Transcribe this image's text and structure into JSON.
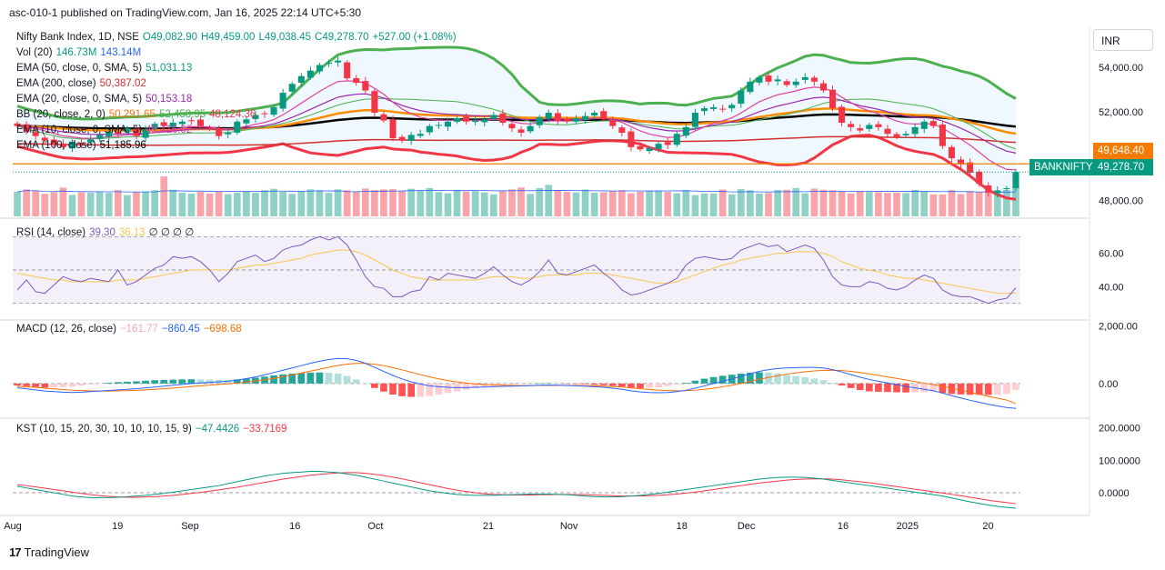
{
  "header": {
    "text": "asc-010-1 published on TradingView.com, Jan 16, 2025 22:14 UTC+5:30"
  },
  "currency": "INR",
  "legend": {
    "title": "Nifty Bank Index, 1D, NSE",
    "open": "O49,082.90",
    "high": "H49,459.00",
    "low": "L49,038.45",
    "close": "C49,278.70",
    "change": "+527.00 (+1.08%)",
    "vol": {
      "label": "Vol (20)",
      "v1": "146.73M",
      "v2": "143.14M"
    },
    "ema50": {
      "label": "EMA (50, close, 0, SMA, 5)",
      "value": "51,031.13"
    },
    "ema200": {
      "label": "EMA (200, close)",
      "value": "50,387.02"
    },
    "ema20": {
      "label": "EMA (20, close, 0, SMA, 5)",
      "value": "50,153.18"
    },
    "bb": {
      "label": "BB (20, close, 2, 0)",
      "basis": "50,291.65",
      "upper": "52,458.95",
      "lower": "48,124.36"
    },
    "ema10": {
      "label": "EMA (10, close, 0, SMA, 5)",
      "value": "49,416.92"
    },
    "ema100": {
      "label": "EMA (100, close)",
      "value": "51,185.96"
    }
  },
  "rsi": {
    "label": "RSI (14, close)",
    "value": "39.30",
    "ma": "36.13",
    "extras": "∅ ∅ ∅ ∅"
  },
  "macd": {
    "label": "MACD (12, 26, close)",
    "hist": "−161.77",
    "macd": "−860.45",
    "signal": "−698.68"
  },
  "kst": {
    "label": "KST (10, 15, 20, 30, 10, 10, 10, 15, 9)",
    "kst": "−47.4426",
    "signal": "−33.7169"
  },
  "price_tags": {
    "last_label": "BANKNIFTY",
    "last_value": "49,278.70",
    "level_value": "49,648.40"
  },
  "footer": {
    "brand": "TradingView"
  },
  "colors": {
    "up": "#089981",
    "down": "#f23645",
    "bb": "#4caf50",
    "ema10": "#e040a0",
    "ema20": "#9c27b0",
    "ema50": "#ff8c00",
    "ema100": "#000000",
    "ema200": "#d32f2f",
    "rsi": "#7e57c2",
    "macd": "#2962ff",
    "signal": "#ff6d00"
  },
  "chart_data": {
    "type": "line",
    "title": "Nifty Bank Index, 1D, NSE",
    "x_ticks": [
      "Aug",
      "19",
      "Sep",
      "16",
      "Oct",
      "21",
      "Nov",
      "18",
      "Dec",
      "16",
      "2025",
      "20"
    ],
    "price_axis": {
      "ticks": [
        "54,000.00",
        "52,000.00",
        "48,000.00"
      ],
      "ylim": [
        47200,
        55800
      ]
    },
    "rsi_axis": {
      "ticks": [
        "60.00",
        "40.00"
      ],
      "ylim": [
        20,
        80
      ]
    },
    "macd_axis": {
      "ticks": [
        "2,000.00",
        "0.00"
      ],
      "ylim": [
        -1200,
        2200
      ]
    },
    "kst_axis": {
      "ticks": [
        "200.0000",
        "100.0000",
        "0.0000"
      ],
      "ylim": [
        -70,
        230
      ]
    },
    "series": [
      {
        "name": "Nifty Bank Index",
        "values": [
          51350,
          51100,
          50900,
          50700,
          50500,
          50400,
          50650,
          50550,
          50750,
          50950,
          51100,
          51000,
          51250,
          50900,
          51200,
          51450,
          51350,
          51500,
          51550,
          51600,
          51350,
          51250,
          50900,
          51050,
          51550,
          51650,
          51850,
          51900,
          52200,
          52850,
          53250,
          53600,
          53850,
          54100,
          54200,
          54300,
          53500,
          53300,
          52950,
          51950,
          51600,
          50800,
          50750,
          50950,
          51000,
          51350,
          51400,
          51550,
          51700,
          51550,
          51600,
          51650,
          51850,
          51500,
          51250,
          51050,
          51350,
          51750,
          51950,
          51600,
          51550,
          51700,
          51800,
          51950,
          51650,
          51350,
          51050,
          50400,
          50300,
          50350,
          50550,
          50500,
          51000,
          51300,
          51950,
          52150,
          52200,
          52100,
          52300,
          52950,
          53350,
          53550,
          53350,
          53450,
          53200,
          53350,
          53550,
          53350,
          52950,
          52150,
          51500,
          51300,
          51150,
          51400,
          51300,
          51000,
          50850,
          51000,
          51300,
          51550,
          51350,
          50450,
          49900,
          49650,
          49250,
          48750,
          48350,
          48450,
          48550,
          49278.7
        ]
      },
      {
        "name": "Vol",
        "values": [
          120,
          132,
          125,
          110,
          118,
          140,
          105,
          118,
          115,
          122,
          115,
          128,
          104,
          118,
          122,
          128,
          195,
          130,
          116,
          111,
          120,
          112,
          120,
          109,
          116,
          122,
          115,
          128,
          135,
          120,
          110,
          122,
          132,
          128,
          115,
          132,
          128,
          120,
          136,
          128,
          132,
          133,
          122,
          135,
          124,
          138,
          119,
          113,
          128,
          121,
          124,
          117,
          108,
          123,
          132,
          141,
          110,
          138,
          154,
          127,
          120,
          117,
          131,
          116,
          118,
          123,
          128,
          113,
          120,
          123,
          126,
          120,
          113,
          129,
          104,
          112,
          112,
          131,
          108,
          134,
          128,
          112,
          114,
          129,
          130,
          138,
          113,
          136,
          130,
          128,
          123,
          112,
          121,
          119,
          118,
          115,
          117,
          114,
          129,
          121,
          107,
          107,
          128,
          109,
          124,
          120,
          119,
          112,
          129,
          146.73
        ]
      },
      {
        "name": "RSI",
        "values": [
          38,
          44,
          37,
          36,
          41,
          46,
          44,
          43,
          45,
          44,
          43,
          50,
          41,
          43,
          47,
          51,
          53,
          58,
          57,
          58,
          55,
          50,
          43,
          48,
          55,
          57,
          59,
          55,
          57,
          62,
          64,
          65,
          68,
          70,
          68,
          70,
          65,
          56,
          46,
          40,
          39,
          34,
          34,
          37,
          38,
          46,
          44,
          48,
          47,
          46,
          45,
          48,
          52,
          47,
          43,
          41,
          44,
          49,
          56,
          48,
          47,
          49,
          51,
          53,
          48,
          44,
          38,
          35,
          36,
          38,
          40,
          42,
          45,
          53,
          57,
          58,
          57,
          56,
          57,
          62,
          64,
          66,
          64,
          65,
          61,
          63,
          65,
          63,
          56,
          46,
          41,
          40,
          40,
          43,
          42,
          39,
          38,
          40,
          44,
          47,
          45,
          38,
          35,
          34,
          34,
          32,
          30,
          32,
          33,
          39.3
        ]
      },
      {
        "name": "RSI MA",
        "values": [
          48,
          47,
          46,
          45,
          44,
          44,
          43,
          43,
          43,
          43,
          43,
          44,
          44,
          44,
          45,
          46,
          47,
          48,
          49,
          50,
          50,
          50,
          50,
          50,
          51,
          52,
          53,
          53,
          54,
          55,
          56,
          57,
          59,
          60,
          61,
          62,
          62,
          61,
          59,
          56,
          53,
          50,
          48,
          46,
          45,
          44,
          44,
          44,
          44,
          44,
          44,
          45,
          46,
          46,
          46,
          45,
          45,
          46,
          47,
          47,
          47,
          47,
          48,
          48,
          48,
          47,
          46,
          45,
          44,
          43,
          42,
          42,
          43,
          45,
          47,
          49,
          51,
          53,
          54,
          56,
          57,
          58,
          59,
          60,
          60,
          61,
          61,
          61,
          60,
          58,
          55,
          53,
          51,
          50,
          49,
          47,
          46,
          45,
          45,
          44,
          43,
          42,
          41,
          40,
          39,
          38,
          37,
          36,
          36,
          36.13
        ]
      },
      {
        "name": "MACD",
        "values": [
          -150,
          -180,
          -220,
          -260,
          -280,
          -300,
          -310,
          -300,
          -280,
          -260,
          -240,
          -220,
          -200,
          -180,
          -150,
          -120,
          -90,
          -60,
          -30,
          0,
          20,
          40,
          60,
          80,
          120,
          170,
          230,
          300,
          380,
          460,
          540,
          620,
          700,
          770,
          830,
          870,
          860,
          800,
          700,
          560,
          420,
          280,
          160,
          60,
          -20,
          -80,
          -110,
          -130,
          -140,
          -140,
          -130,
          -120,
          -110,
          -100,
          -90,
          -80,
          -70,
          -60,
          -55,
          -60,
          -70,
          -80,
          -90,
          -110,
          -130,
          -160,
          -200,
          -250,
          -290,
          -310,
          -320,
          -310,
          -280,
          -230,
          -160,
          -80,
          0,
          80,
          160,
          250,
          340,
          420,
          480,
          520,
          540,
          550,
          560,
          560,
          540,
          480,
          400,
          310,
          220,
          140,
          80,
          20,
          -40,
          -100,
          -150,
          -200,
          -250,
          -330,
          -420,
          -500,
          -580,
          -650,
          -720,
          -780,
          -830,
          -860.45
        ]
      },
      {
        "name": "Signal",
        "values": [
          -100,
          -115,
          -135,
          -160,
          -185,
          -210,
          -230,
          -245,
          -255,
          -258,
          -258,
          -254,
          -246,
          -235,
          -220,
          -202,
          -180,
          -156,
          -131,
          -105,
          -80,
          -56,
          -32,
          -10,
          18,
          50,
          86,
          129,
          179,
          235,
          296,
          361,
          429,
          497,
          564,
          625,
          672,
          698,
          698,
          670,
          620,
          552,
          474,
          391,
          309,
          231,
          163,
          104,
          55,
          16,
          -13,
          -35,
          -50,
          -60,
          -66,
          -69,
          -69,
          -67,
          -65,
          -64,
          -65,
          -68,
          -73,
          -80,
          -90,
          -104,
          -123,
          -148,
          -176,
          -203,
          -227,
          -244,
          -251,
          -247,
          -230,
          -200,
          -160,
          -112,
          -58,
          4,
          71,
          141,
          209,
          271,
          325,
          370,
          408,
          438,
          458,
          462,
          450,
          422,
          382,
          334,
          283,
          230,
          176,
          121,
          67,
          14,
          -39,
          -97,
          -162,
          -230,
          -300,
          -370,
          -440,
          -508,
          -572,
          -698.68
        ]
      },
      {
        "name": "KST",
        "values": [
          20,
          15,
          10,
          5,
          0,
          -5,
          -10,
          -13,
          -15,
          -15,
          -15,
          -14,
          -12,
          -10,
          -8,
          -5,
          -2,
          2,
          6,
          10,
          14,
          18,
          22,
          28,
          34,
          40,
          46,
          52,
          56,
          60,
          62,
          64,
          66,
          66,
          64,
          62,
          58,
          54,
          48,
          42,
          36,
          30,
          24,
          18,
          12,
          6,
          2,
          -2,
          -5,
          -7,
          -8,
          -8,
          -8,
          -7,
          -6,
          -5,
          -4,
          -4,
          -4,
          -5,
          -6,
          -8,
          -10,
          -12,
          -13,
          -13,
          -12,
          -10,
          -8,
          -5,
          -2,
          2,
          6,
          10,
          14,
          18,
          22,
          26,
          30,
          34,
          38,
          42,
          45,
          47,
          48,
          48,
          47,
          45,
          42,
          38,
          34,
          30,
          26,
          22,
          18,
          14,
          10,
          6,
          2,
          -2,
          -6,
          -10,
          -16,
          -22,
          -28,
          -33,
          -38,
          -42,
          -45,
          -47.44
        ]
      },
      {
        "name": "KST Signal",
        "values": [
          25,
          22,
          18,
          14,
          10,
          6,
          2,
          -2,
          -6,
          -9,
          -11,
          -13,
          -14,
          -14,
          -13,
          -12,
          -10,
          -8,
          -5,
          -2,
          1,
          5,
          9,
          13,
          17,
          22,
          27,
          32,
          37,
          42,
          46,
          50,
          54,
          57,
          59,
          61,
          62,
          62,
          60,
          57,
          53,
          48,
          43,
          37,
          31,
          25,
          19,
          13,
          8,
          4,
          0,
          -3,
          -5,
          -6,
          -7,
          -7,
          -7,
          -6,
          -6,
          -5,
          -5,
          -6,
          -6,
          -7,
          -8,
          -9,
          -10,
          -10,
          -10,
          -9,
          -8,
          -6,
          -4,
          -1,
          2,
          6,
          10,
          14,
          18,
          22,
          26,
          30,
          33,
          36,
          39,
          41,
          42,
          43,
          43,
          42,
          40,
          37,
          34,
          31,
          27,
          23,
          19,
          15,
          11,
          7,
          3,
          -1,
          -5,
          -9,
          -14,
          -18,
          -23,
          -27,
          -30,
          -33.72
        ]
      }
    ]
  }
}
